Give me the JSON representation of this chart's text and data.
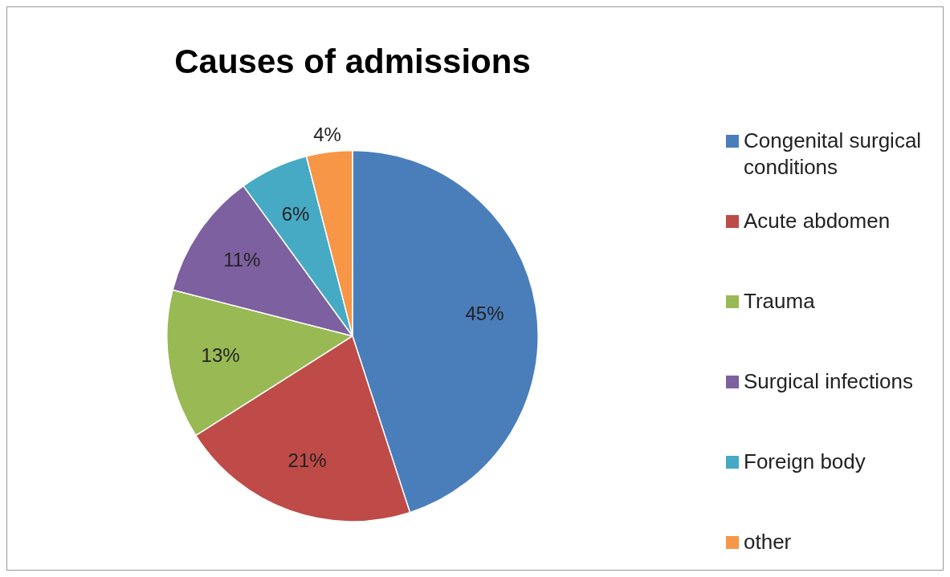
{
  "chart_data": {
    "type": "pie",
    "title": "Causes of admissions",
    "categories": [
      "Congenital surgical conditions",
      "Acute abdomen",
      "Trauma",
      "Surgical infections",
      "Foreign body",
      "other"
    ],
    "values": [
      45,
      21,
      13,
      11,
      6,
      4
    ],
    "value_labels": [
      "45%",
      "21%",
      "13%",
      "11%",
      "6%",
      "4%"
    ],
    "colors": [
      "#4a7ebb",
      "#be4b48",
      "#98b954",
      "#7d60a0",
      "#46aac5",
      "#f79646"
    ],
    "legend": "right"
  }
}
